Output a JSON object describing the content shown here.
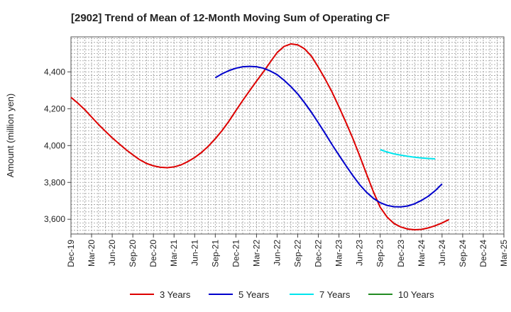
{
  "chart_data": {
    "type": "line",
    "title": "[2902]  Trend of Mean of 12-Month Moving Sum of Operating CF",
    "xlabel": "",
    "ylabel": "Amount (million yen)",
    "ylim": [
      3520,
      4590
    ],
    "yticks": [
      3600,
      3800,
      4000,
      4200,
      4400
    ],
    "ytick_labels": [
      "3,600",
      "3,800",
      "4,000",
      "4,200",
      "4,400"
    ],
    "grid": true,
    "legend_position": "bottom",
    "x_tick_labels": [
      "Dec-19",
      "Mar-20",
      "Jun-20",
      "Sep-20",
      "Dec-20",
      "Mar-21",
      "Jun-21",
      "Sep-21",
      "Dec-21",
      "Mar-22",
      "Jun-22",
      "Sep-22",
      "Dec-22",
      "Mar-23",
      "Jun-23",
      "Sep-23",
      "Dec-23",
      "Mar-24",
      "Jun-24",
      "Sep-24",
      "Dec-24",
      "Mar-25"
    ],
    "series": [
      {
        "name": "3 Years",
        "color": "#dd0000",
        "start_month_index": 0,
        "values": [
          4262,
          4230,
          4195,
          4155,
          4115,
          4078,
          4042,
          4010,
          3978,
          3950,
          3923,
          3903,
          3890,
          3882,
          3880,
          3884,
          3895,
          3913,
          3935,
          3963,
          3997,
          4037,
          4082,
          4133,
          4190,
          4245,
          4298,
          4350,
          4400,
          4453,
          4505,
          4538,
          4552,
          4547,
          4525,
          4485,
          4425,
          4360,
          4290,
          4210,
          4127,
          4040,
          3945,
          3847,
          3750,
          3665,
          3612,
          3577,
          3558,
          3547,
          3543,
          3545,
          3553,
          3565,
          3580,
          3598
        ]
      },
      {
        "name": "5 Years",
        "color": "#0000cc",
        "start_month_index": 21,
        "values": [
          4368,
          4390,
          4407,
          4420,
          4428,
          4430,
          4428,
          4420,
          4405,
          4385,
          4355,
          4320,
          4280,
          4232,
          4180,
          4123,
          4065,
          4005,
          3948,
          3892,
          3838,
          3788,
          3747,
          3714,
          3690,
          3675,
          3668,
          3667,
          3672,
          3684,
          3702,
          3725,
          3755,
          3792
        ]
      },
      {
        "name": "7 Years",
        "color": "#00e5ee",
        "start_month_index": 45,
        "values": [
          3978,
          3965,
          3955,
          3948,
          3942,
          3937,
          3933,
          3930,
          3928
        ]
      },
      {
        "name": "10 Years",
        "color": "#228b22",
        "start_month_index": 0,
        "values": []
      }
    ]
  }
}
